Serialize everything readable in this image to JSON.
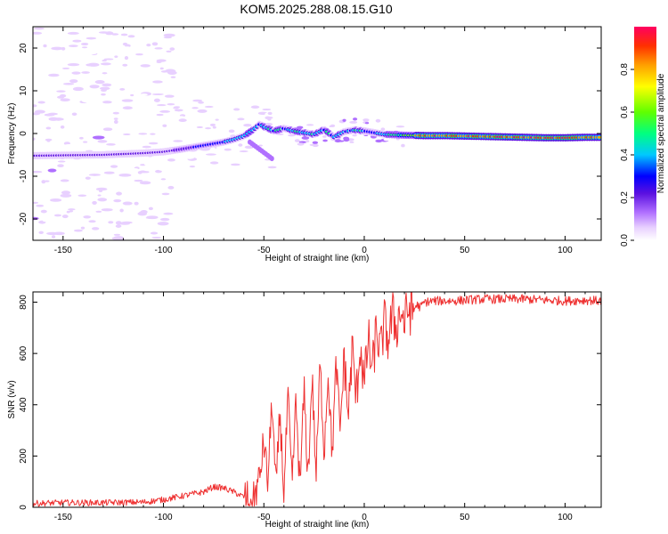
{
  "title": "KOM5.2025.288.08.15.G10",
  "chart_data": [
    {
      "type": "heatmap",
      "xlabel": "Height of straight line (km)",
      "ylabel": "Frequency (Hz)",
      "xlim": [
        -165,
        118
      ],
      "ylim": [
        -25,
        25
      ],
      "xticks": [
        -150,
        -100,
        -50,
        0,
        50,
        100
      ],
      "xtick_labels": [
        "-150",
        "-100",
        "-50",
        "0",
        "50",
        "100"
      ],
      "yticks": [
        -20,
        -10,
        0,
        10,
        20
      ],
      "ytick_labels": [
        "-20",
        "-10",
        "0",
        "10",
        "20"
      ],
      "ridge": {
        "x": [
          -165,
          -150,
          -130,
          -110,
          -100,
          -90,
          -80,
          -70,
          -65,
          -60,
          -55,
          -52,
          -50,
          -45,
          -40,
          -35,
          -30,
          -25,
          -20,
          -15,
          -10,
          -5,
          0,
          5,
          10,
          20,
          30,
          40,
          50,
          60,
          70,
          80,
          90,
          100,
          110,
          118
        ],
        "freq": [
          -5.2,
          -5.1,
          -5.0,
          -4.6,
          -4.3,
          -3.6,
          -2.8,
          -2.0,
          -1.4,
          -0.6,
          1.0,
          2.2,
          1.6,
          0.6,
          1.2,
          0.6,
          0.2,
          -0.2,
          0.9,
          -0.8,
          0.4,
          0.8,
          0.6,
          0.2,
          -0.2,
          -0.4,
          -0.5,
          -0.5,
          -0.6,
          -0.7,
          -0.8,
          -0.9,
          -1.0,
          -1.0,
          -0.9,
          -0.9
        ]
      },
      "colorbar": {
        "label": "Normalized spectral amplitude",
        "range": [
          0,
          1
        ],
        "ticks": [
          0.0,
          0.2,
          0.4,
          0.6,
          0.8
        ],
        "tick_labels": [
          "0.0",
          "0.2",
          "0.4",
          "0.6",
          "0.8"
        ],
        "colors": [
          "#ffffff",
          "#e8d0ff",
          "#b070ff",
          "#5a10e0",
          "#0000ff",
          "#00c8ff",
          "#00ff80",
          "#60ff00",
          "#ffff00",
          "#ffa000",
          "#ff3000",
          "#ff0060"
        ]
      }
    },
    {
      "type": "line",
      "xlabel": "Height of straight line (km)",
      "ylabel": "SNR (v/v)",
      "xlim": [
        -165,
        118
      ],
      "ylim": [
        0,
        840
      ],
      "xticks": [
        -150,
        -100,
        -50,
        0,
        50,
        100
      ],
      "xtick_labels": [
        "-150",
        "-100",
        "-50",
        "0",
        "50",
        "100"
      ],
      "yticks": [
        0,
        200,
        400,
        600,
        800
      ],
      "ytick_labels": [
        "0",
        "200",
        "400",
        "600",
        "800"
      ],
      "series": [
        {
          "name": "SNR",
          "color": "#ee3030",
          "x": [
            -165,
            -150,
            -130,
            -110,
            -100,
            -90,
            -80,
            -75,
            -70,
            -65,
            -60,
            -55,
            -52,
            -50,
            -48,
            -46,
            -44,
            -42,
            -40,
            -38,
            -36,
            -34,
            -32,
            -30,
            -28,
            -26,
            -24,
            -22,
            -20,
            -18,
            -16,
            -14,
            -12,
            -10,
            -8,
            -6,
            -4,
            -2,
            0,
            2,
            4,
            6,
            8,
            10,
            12,
            14,
            16,
            18,
            20,
            22,
            24,
            26,
            28,
            30,
            35,
            40,
            45,
            50,
            60,
            70,
            80,
            90,
            100,
            110,
            118
          ],
          "y": [
            15,
            18,
            18,
            20,
            30,
            45,
            60,
            80,
            75,
            60,
            40,
            30,
            120,
            260,
            90,
            420,
            60,
            380,
            50,
            430,
            80,
            410,
            70,
            460,
            110,
            520,
            120,
            560,
            220,
            530,
            200,
            560,
            300,
            600,
            350,
            620,
            420,
            640,
            470,
            660,
            520,
            700,
            600,
            720,
            650,
            750,
            700,
            770,
            720,
            775,
            760,
            790,
            780,
            800,
            805,
            805,
            805,
            808,
            812,
            812,
            812,
            808,
            805,
            808,
            805
          ]
        }
      ]
    }
  ]
}
